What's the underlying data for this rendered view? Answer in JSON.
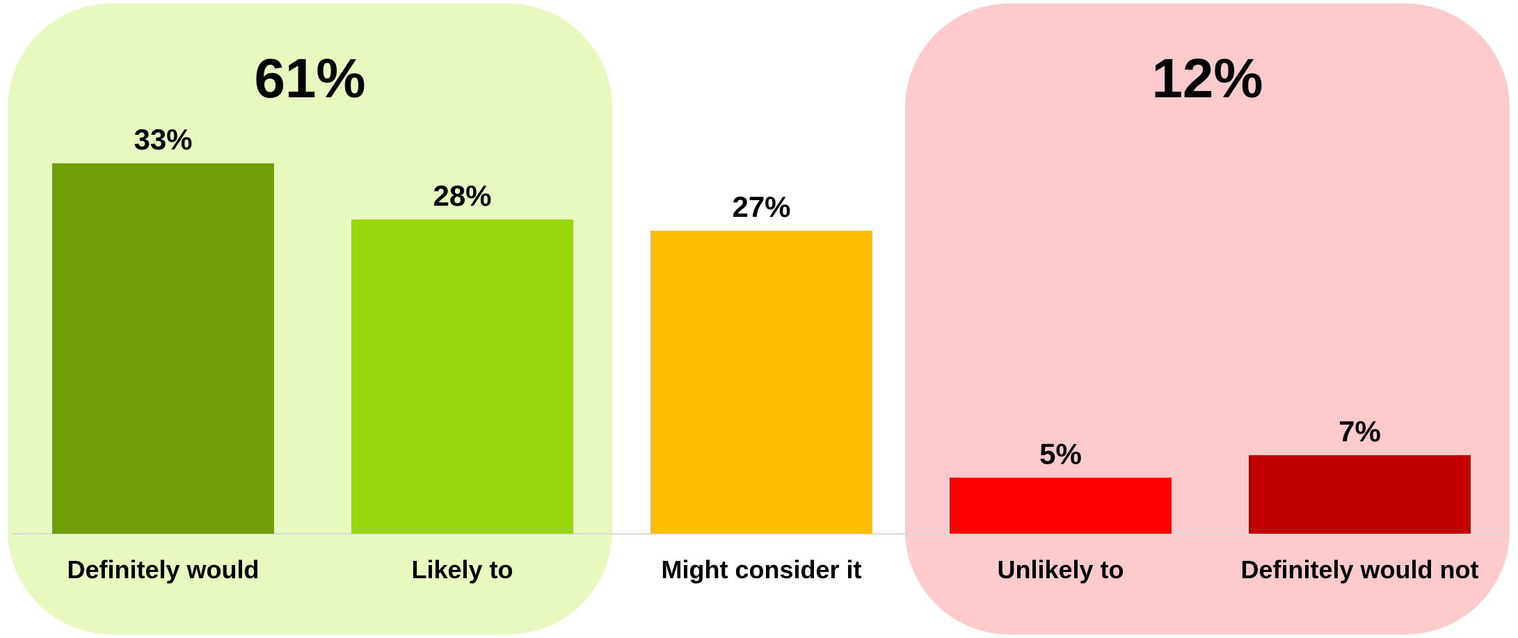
{
  "chart_data": {
    "type": "bar",
    "categories": [
      "Definitely would",
      "Likely to",
      "Might consider it",
      "Unlikely to",
      "Definitely would not"
    ],
    "values": [
      33,
      28,
      27,
      5,
      7
    ],
    "value_labels": [
      "33%",
      "28%",
      "27%",
      "5%",
      "7%"
    ],
    "bar_colors": [
      "#6F9E09",
      "#96D80B",
      "#FFBF00",
      "#FF0000",
      "#C00000"
    ],
    "ylim": [
      0,
      35
    ],
    "grid": false,
    "legend": "none",
    "groups": [
      {
        "label": "61%",
        "value": 61,
        "categories": [
          "Definitely would",
          "Likely to"
        ],
        "color": "#E7F9BE"
      },
      {
        "label": "12%",
        "value": 12,
        "categories": [
          "Unlikely to",
          "Definitely would not"
        ],
        "color": "#FDCBCB"
      }
    ],
    "axis_color": "#D9D9D9"
  }
}
